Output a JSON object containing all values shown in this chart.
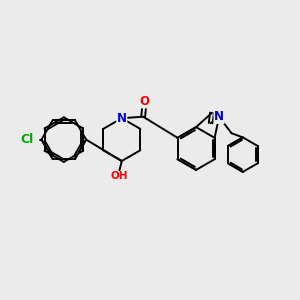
{
  "background_color": "#ebebeb",
  "bond_color": "#000000",
  "bond_width": 1.4,
  "atom_colors": {
    "N": "#0000cc",
    "O": "#ff0000",
    "Cl": "#00aa00",
    "H": "#000000"
  },
  "font_size": 8.5
}
